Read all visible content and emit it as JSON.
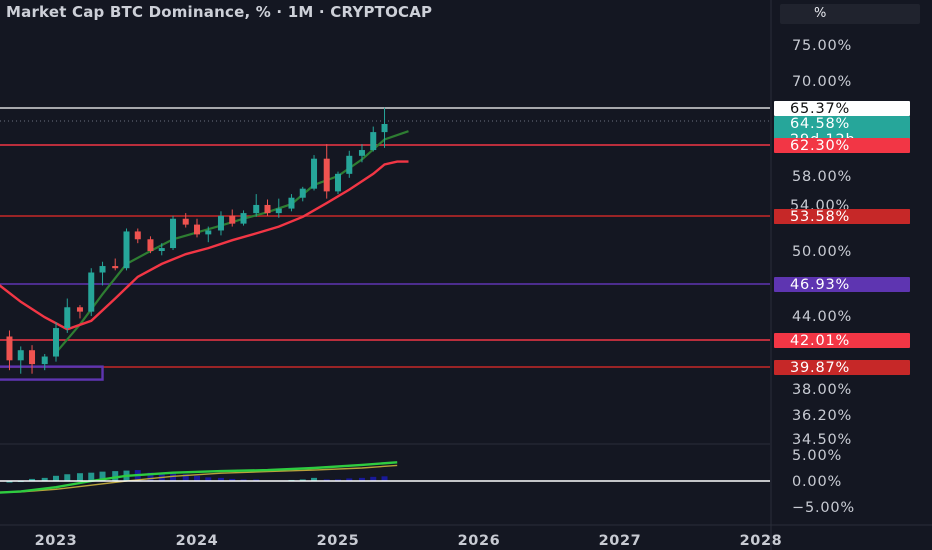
{
  "header": {
    "title": "Market Cap BTC Dominance, % · 1M · CRYPTOCAP",
    "unit_label": "%"
  },
  "colors": {
    "background": "#141722",
    "bull": "#26a69a",
    "bear": "#ef5350",
    "ema_red": "#f23645",
    "ema_green": "#2e7d32",
    "purple": "#5e35b1",
    "macd_hist": "#26a69a",
    "macd_line": "#2ecc40",
    "signal_line": "#b8a23a"
  },
  "chart_data": {
    "type": "line",
    "main_axis": {
      "ticks": [
        "75.00%",
        "70.00%",
        "58.00%",
        "50.00%",
        "44.00%",
        "38.00%",
        "36.20%",
        "34.50%"
      ],
      "tick_values": [
        75.0,
        70.0,
        58.0,
        50.0,
        44.0,
        38.0,
        36.2,
        34.5
      ]
    },
    "x_axis": {
      "ticks": [
        "2023",
        "2024",
        "2025",
        "2026",
        "2027",
        "2028"
      ],
      "tick_years": [
        2023,
        2024,
        2025,
        2026,
        2027,
        2028
      ]
    },
    "price_levels": [
      {
        "label": "65.37%",
        "value": 65.37,
        "color": "#ffffff",
        "text_color": "#111111",
        "line": true
      },
      {
        "label": "64.58%",
        "sublabel": "29d 12h",
        "value": 64.58,
        "color": "#26a69a",
        "text_color": "#ffffff",
        "line": false
      },
      {
        "label": "62.30%",
        "value": 62.3,
        "color": "#f23645",
        "text_color": "#ffffff",
        "line": true
      },
      {
        "label": "53.58%",
        "value": 53.58,
        "color": "#c62828",
        "text_color": "#ffffff",
        "line": true
      },
      {
        "label": "46.93%",
        "value": 46.93,
        "color": "#5e35b1",
        "text_color": "#ffffff",
        "line": true
      },
      {
        "label": "42.01%",
        "value": 42.01,
        "color": "#f23645",
        "text_color": "#ffffff",
        "line": true
      },
      {
        "label": "39.87%",
        "value": 39.87,
        "color": "#c62828",
        "text_color": "#ffffff",
        "line": true
      }
    ],
    "hidden_tick": {
      "label": "54.00%",
      "value": 54.0
    },
    "candles": [
      {
        "t": 2022.42,
        "o": 47.3,
        "h": 48.0,
        "l": 45.2,
        "c": 45.6
      },
      {
        "t": 2022.5,
        "o": 45.6,
        "h": 46.8,
        "l": 44.6,
        "c": 45.9
      },
      {
        "t": 2022.58,
        "o": 45.9,
        "h": 46.1,
        "l": 42.0,
        "c": 42.3
      },
      {
        "t": 2022.67,
        "o": 42.3,
        "h": 42.8,
        "l": 39.6,
        "c": 40.4
      },
      {
        "t": 2022.75,
        "o": 40.4,
        "h": 41.5,
        "l": 39.3,
        "c": 41.2
      },
      {
        "t": 2022.83,
        "o": 41.2,
        "h": 41.6,
        "l": 39.3,
        "c": 40.1
      },
      {
        "t": 2022.92,
        "o": 40.1,
        "h": 40.9,
        "l": 39.6,
        "c": 40.7
      },
      {
        "t": 2023.0,
        "o": 40.7,
        "h": 43.5,
        "l": 40.3,
        "c": 43.0
      },
      {
        "t": 2023.08,
        "o": 43.0,
        "h": 45.6,
        "l": 42.6,
        "c": 44.8
      },
      {
        "t": 2023.17,
        "o": 44.8,
        "h": 45.0,
        "l": 43.8,
        "c": 44.4
      },
      {
        "t": 2023.25,
        "o": 44.4,
        "h": 48.4,
        "l": 44.0,
        "c": 48.0
      },
      {
        "t": 2023.33,
        "o": 48.0,
        "h": 49.0,
        "l": 46.8,
        "c": 48.6
      },
      {
        "t": 2023.42,
        "o": 48.6,
        "h": 49.3,
        "l": 48.2,
        "c": 48.4
      },
      {
        "t": 2023.5,
        "o": 48.4,
        "h": 52.3,
        "l": 48.2,
        "c": 52.0
      },
      {
        "t": 2023.58,
        "o": 52.0,
        "h": 52.3,
        "l": 50.8,
        "c": 51.2
      },
      {
        "t": 2023.67,
        "o": 51.2,
        "h": 51.5,
        "l": 49.8,
        "c": 50.0
      },
      {
        "t": 2023.75,
        "o": 50.0,
        "h": 50.8,
        "l": 49.6,
        "c": 50.3
      },
      {
        "t": 2023.83,
        "o": 50.3,
        "h": 53.6,
        "l": 50.1,
        "c": 53.3
      },
      {
        "t": 2023.92,
        "o": 53.3,
        "h": 53.9,
        "l": 52.4,
        "c": 52.7
      },
      {
        "t": 2024.0,
        "o": 52.7,
        "h": 53.3,
        "l": 51.4,
        "c": 51.7
      },
      {
        "t": 2024.08,
        "o": 51.7,
        "h": 52.5,
        "l": 50.9,
        "c": 52.1
      },
      {
        "t": 2024.17,
        "o": 52.1,
        "h": 54.1,
        "l": 51.6,
        "c": 53.6
      },
      {
        "t": 2024.25,
        "o": 53.6,
        "h": 54.3,
        "l": 52.5,
        "c": 52.8
      },
      {
        "t": 2024.33,
        "o": 52.8,
        "h": 54.2,
        "l": 52.6,
        "c": 53.9
      },
      {
        "t": 2024.42,
        "o": 53.9,
        "h": 56.0,
        "l": 53.5,
        "c": 54.8
      },
      {
        "t": 2024.5,
        "o": 54.8,
        "h": 55.4,
        "l": 53.6,
        "c": 53.9
      },
      {
        "t": 2024.58,
        "o": 53.9,
        "h": 55.5,
        "l": 53.4,
        "c": 54.4
      },
      {
        "t": 2024.67,
        "o": 54.4,
        "h": 56.0,
        "l": 54.1,
        "c": 55.6
      },
      {
        "t": 2024.75,
        "o": 55.6,
        "h": 56.8,
        "l": 55.2,
        "c": 56.6
      },
      {
        "t": 2024.83,
        "o": 56.6,
        "h": 60.9,
        "l": 56.4,
        "c": 60.4
      },
      {
        "t": 2024.92,
        "o": 60.4,
        "h": 62.4,
        "l": 55.5,
        "c": 56.3
      },
      {
        "t": 2025.0,
        "o": 56.3,
        "h": 58.6,
        "l": 56.0,
        "c": 58.3
      },
      {
        "t": 2025.08,
        "o": 58.3,
        "h": 61.5,
        "l": 57.8,
        "c": 60.8
      },
      {
        "t": 2025.17,
        "o": 60.8,
        "h": 62.4,
        "l": 59.9,
        "c": 61.6
      },
      {
        "t": 2025.25,
        "o": 61.6,
        "h": 64.3,
        "l": 61.4,
        "c": 63.7
      },
      {
        "t": 2025.33,
        "o": 63.7,
        "h": 65.4,
        "l": 61.9,
        "c": 64.58
      }
    ],
    "ema_red": [
      {
        "t": 2022.42,
        "v": 47.8
      },
      {
        "t": 2022.58,
        "v": 47.0
      },
      {
        "t": 2022.75,
        "v": 45.3
      },
      {
        "t": 2022.92,
        "v": 43.9
      },
      {
        "t": 2023.08,
        "v": 42.9
      },
      {
        "t": 2023.25,
        "v": 43.6
      },
      {
        "t": 2023.42,
        "v": 45.6
      },
      {
        "t": 2023.58,
        "v": 47.6
      },
      {
        "t": 2023.75,
        "v": 48.8
      },
      {
        "t": 2023.92,
        "v": 49.7
      },
      {
        "t": 2024.08,
        "v": 50.3
      },
      {
        "t": 2024.25,
        "v": 51.1
      },
      {
        "t": 2024.42,
        "v": 51.8
      },
      {
        "t": 2024.58,
        "v": 52.5
      },
      {
        "t": 2024.75,
        "v": 53.5
      },
      {
        "t": 2024.92,
        "v": 55.0
      },
      {
        "t": 2025.08,
        "v": 56.5
      },
      {
        "t": 2025.25,
        "v": 58.3
      },
      {
        "t": 2025.33,
        "v": 59.6
      },
      {
        "t": 2025.42,
        "v": 60.0
      },
      {
        "t": 2025.5,
        "v": 60.0
      }
    ],
    "ema_green": [
      {
        "t": 2023.0,
        "v": 41.0
      },
      {
        "t": 2023.17,
        "v": 43.3
      },
      {
        "t": 2023.33,
        "v": 46.0
      },
      {
        "t": 2023.5,
        "v": 48.8
      },
      {
        "t": 2023.67,
        "v": 50.0
      },
      {
        "t": 2023.83,
        "v": 51.2
      },
      {
        "t": 2024.0,
        "v": 51.9
      },
      {
        "t": 2024.17,
        "v": 52.6
      },
      {
        "t": 2024.33,
        "v": 53.3
      },
      {
        "t": 2024.5,
        "v": 54.0
      },
      {
        "t": 2024.67,
        "v": 54.9
      },
      {
        "t": 2024.83,
        "v": 57.0
      },
      {
        "t": 2025.0,
        "v": 58.0
      },
      {
        "t": 2025.17,
        "v": 60.3
      },
      {
        "t": 2025.33,
        "v": 62.9
      },
      {
        "t": 2025.5,
        "v": 63.8
      }
    ],
    "box": {
      "t_start": 2022.42,
      "t_end": 2023.33,
      "v_top": 39.9,
      "v_bottom": 38.8
    },
    "sub_axis": {
      "ticks": [
        "5.00%",
        "0.00%",
        "−5.00%"
      ],
      "tick_values": [
        5,
        0,
        -5
      ]
    },
    "macd_hist": [
      {
        "t": 2022.42,
        "v": -0.8
      },
      {
        "t": 2022.5,
        "v": -0.6
      },
      {
        "t": 2022.58,
        "v": -0.5
      },
      {
        "t": 2022.67,
        "v": -0.3
      },
      {
        "t": 2022.75,
        "v": -0.2
      },
      {
        "t": 2022.83,
        "v": 0.4
      },
      {
        "t": 2022.92,
        "v": 0.6
      },
      {
        "t": 2023.0,
        "v": 1.0
      },
      {
        "t": 2023.08,
        "v": 1.3
      },
      {
        "t": 2023.17,
        "v": 1.5
      },
      {
        "t": 2023.25,
        "v": 1.6
      },
      {
        "t": 2023.33,
        "v": 1.8
      },
      {
        "t": 2023.42,
        "v": 1.9
      },
      {
        "t": 2023.5,
        "v": 2.0
      },
      {
        "t": 2023.58,
        "v": 2.1
      },
      {
        "t": 2023.67,
        "v": 1.6
      },
      {
        "t": 2023.75,
        "v": 1.4
      },
      {
        "t": 2023.83,
        "v": 1.5
      },
      {
        "t": 2023.92,
        "v": 1.3
      },
      {
        "t": 2024.0,
        "v": 1.0
      },
      {
        "t": 2024.08,
        "v": 0.7
      },
      {
        "t": 2024.17,
        "v": 0.6
      },
      {
        "t": 2024.25,
        "v": 0.4
      },
      {
        "t": 2024.33,
        "v": 0.3
      },
      {
        "t": 2024.42,
        "v": 0.3
      },
      {
        "t": 2024.5,
        "v": 0.1
      },
      {
        "t": 2024.58,
        "v": 0.1
      },
      {
        "t": 2024.67,
        "v": 0.2
      },
      {
        "t": 2024.75,
        "v": 0.3
      },
      {
        "t": 2024.83,
        "v": 0.6
      },
      {
        "t": 2024.92,
        "v": 0.3
      },
      {
        "t": 2025.0,
        "v": 0.3
      },
      {
        "t": 2025.08,
        "v": 0.5
      },
      {
        "t": 2025.17,
        "v": 0.6
      },
      {
        "t": 2025.25,
        "v": 0.8
      },
      {
        "t": 2025.33,
        "v": 0.9
      }
    ],
    "macd_line": [
      {
        "t": 2022.42,
        "v": -2.5
      },
      {
        "t": 2022.75,
        "v": -2.0
      },
      {
        "t": 2023.0,
        "v": -1.2
      },
      {
        "t": 2023.25,
        "v": 0.0
      },
      {
        "t": 2023.5,
        "v": 1.0
      },
      {
        "t": 2023.83,
        "v": 1.6
      },
      {
        "t": 2024.17,
        "v": 1.9
      },
      {
        "t": 2024.5,
        "v": 2.1
      },
      {
        "t": 2024.83,
        "v": 2.5
      },
      {
        "t": 2025.17,
        "v": 3.1
      },
      {
        "t": 2025.42,
        "v": 3.6
      }
    ],
    "signal_line": [
      {
        "t": 2022.42,
        "v": -2.2
      },
      {
        "t": 2022.75,
        "v": -2.1
      },
      {
        "t": 2023.0,
        "v": -1.6
      },
      {
        "t": 2023.25,
        "v": -0.8
      },
      {
        "t": 2023.5,
        "v": 0.0
      },
      {
        "t": 2023.83,
        "v": 0.9
      },
      {
        "t": 2024.17,
        "v": 1.5
      },
      {
        "t": 2024.5,
        "v": 1.8
      },
      {
        "t": 2024.83,
        "v": 2.1
      },
      {
        "t": 2025.17,
        "v": 2.5
      },
      {
        "t": 2025.42,
        "v": 3.0
      }
    ]
  }
}
